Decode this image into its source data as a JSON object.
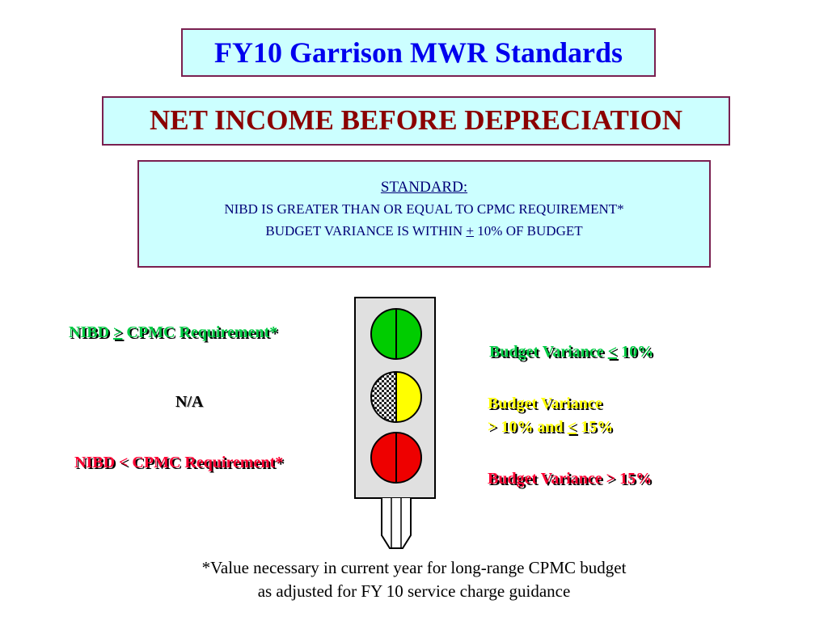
{
  "title": "FY10 Garrison MWR Standards",
  "subtitle": "NET INCOME BEFORE DEPRECIATION",
  "standard": {
    "heading": "STANDARD:",
    "line1": "NIBD IS GREATER THAN OR EQUAL TO CPMC REQUIREMENT*",
    "line2_prefix": "BUDGET VARIANCE IS WITHIN ",
    "line2_symbol": "+",
    "line2_suffix": " 10% OF BUDGET"
  },
  "left_labels": {
    "green_prefix": "NIBD ",
    "green_symbol": ">",
    "green_suffix": " CPMC Requirement*",
    "yellow": "N/A",
    "red": "NIBD < CPMC Requirement*"
  },
  "right_labels": {
    "green_prefix": "Budget Variance ",
    "green_symbol": "<",
    "green_suffix": " 10%",
    "yellow_line1": "Budget Variance",
    "yellow_line2_prefix": "> 10% and ",
    "yellow_line2_symbol": "<",
    "yellow_line2_suffix": " 15%",
    "red": "Budget Variance > 15%"
  },
  "footnote": {
    "line1": "*Value necessary in current year for long-range CPMC budget",
    "line2": "as adjusted for FY 10 service charge guidance"
  },
  "colors": {
    "box_fill": "#ccffff",
    "box_border": "#7a2050",
    "title": "#0000ee",
    "subtitle": "#8b0000",
    "light_green": "#00cc00",
    "light_yellow": "#ffff00",
    "light_red": "#ee0000"
  }
}
